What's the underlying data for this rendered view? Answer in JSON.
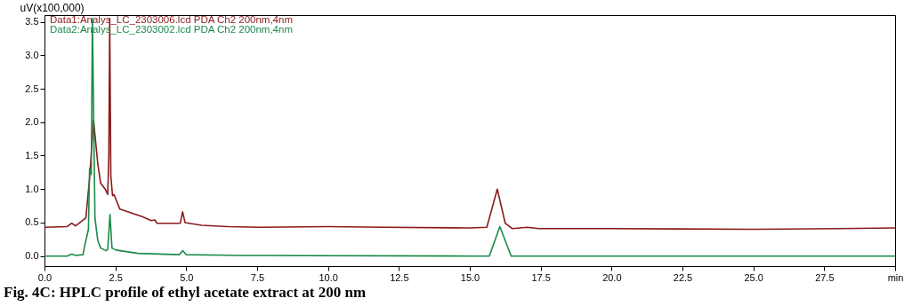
{
  "chart_data": {
    "type": "line",
    "title": "Fig. 4C: HPLC profile of ethyl acetate extract at 200 nm",
    "ylabel": "uV(x100,000)",
    "xlim": [
      0,
      30
    ],
    "ylim": [
      -0.15,
      3.6
    ],
    "xticks": [
      {
        "value": 0,
        "label": "0.0"
      },
      2.5,
      {
        "value": 5,
        "label": "5.0"
      },
      7.5,
      {
        "value": 10,
        "label": "10.0"
      },
      12.5,
      {
        "value": 15,
        "label": "15.0"
      },
      17.5,
      {
        "value": 20,
        "label": "20.0"
      },
      22.5,
      {
        "value": 25,
        "label": "25.0"
      },
      27.5,
      {
        "value": 30,
        "label": "min"
      }
    ],
    "yticks": [
      {
        "value": 0,
        "label": "0.0"
      },
      0.5,
      {
        "value": 1,
        "label": "1.0"
      },
      1.5,
      {
        "value": 2,
        "label": "2.0"
      },
      2.5,
      {
        "value": 3,
        "label": "3.0"
      },
      3.5
    ],
    "legend": "top left",
    "marker": "none",
    "line_style": "solid",
    "series": [
      {
        "name": "Data1:Analys_LC_2303006.lcd PDA Ch2 200nm,4nm",
        "color": "#8b1a1a",
        "x": [
          0,
          0.8,
          0.96,
          1.1,
          1.46,
          1.59,
          1.73,
          1.88,
          1.98,
          2.14,
          2.23,
          2.27,
          2.3,
          2.34,
          2.4,
          2.45,
          2.66,
          3.45,
          3.76,
          3.89,
          3.97,
          4.49,
          4.79,
          4.87,
          4.96,
          5.54,
          6.48,
          7.6,
          10,
          12,
          15,
          15.6,
          15.97,
          16.25,
          16.5,
          17.03,
          17.45,
          20,
          25,
          28,
          30
        ],
        "values": [
          0.43,
          0.44,
          0.49,
          0.45,
          0.57,
          1.16,
          2.03,
          1.38,
          1.09,
          1.0,
          0.92,
          1.5,
          3.55,
          1.2,
          0.9,
          0.92,
          0.7,
          0.59,
          0.53,
          0.54,
          0.49,
          0.49,
          0.49,
          0.66,
          0.5,
          0.46,
          0.44,
          0.43,
          0.44,
          0.43,
          0.42,
          0.43,
          1.0,
          0.49,
          0.41,
          0.43,
          0.41,
          0.41,
          0.4,
          0.41,
          0.42
        ]
      },
      {
        "name": "Data2:Analys_LC_2303002.lcd PDA Ch2 200nm,4nm",
        "color": "#1a8a4a",
        "x": [
          0,
          0.8,
          0.96,
          1.1,
          1.36,
          1.41,
          1.55,
          1.59,
          1.65,
          1.69,
          1.78,
          1.88,
          1.98,
          2.17,
          2.23,
          2.31,
          2.38,
          2.52,
          3.29,
          4.75,
          4.88,
          5.0,
          6.7,
          15,
          15.69,
          16.06,
          16.46,
          20,
          25,
          30
        ],
        "values": [
          0.0,
          0.0,
          0.03,
          0.01,
          0.02,
          0.14,
          0.4,
          1.31,
          1.22,
          3.55,
          0.57,
          0.23,
          0.12,
          0.08,
          0.1,
          0.62,
          0.12,
          0.09,
          0.04,
          0.02,
          0.08,
          0.02,
          0.01,
          0.0,
          0.0,
          0.44,
          0.0,
          0.0,
          0.0,
          0.0
        ]
      }
    ]
  }
}
